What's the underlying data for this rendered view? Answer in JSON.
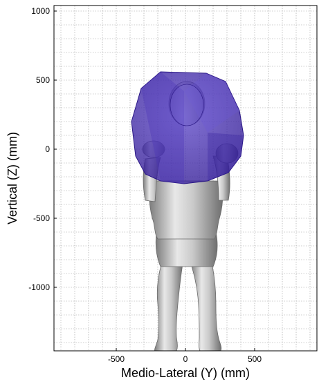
{
  "chart_data": {
    "type": "scatter",
    "title": "",
    "xlabel": "Medio-Lateral (Y) (mm)",
    "ylabel": "Vertical (Z) (mm)",
    "xlim": [
      -950,
      950
    ],
    "ylim": [
      -1460,
      1040
    ],
    "xticks": [
      -500,
      0,
      500
    ],
    "xtick_labels": [
      "-500",
      "0",
      "500"
    ],
    "yticks": [
      1000,
      500,
      0,
      -500,
      -1000
    ],
    "ytick_labels": [
      "1000",
      "500",
      "0",
      "-500",
      "-1000"
    ],
    "minor_grid_step": 100,
    "grid": true,
    "legend": "none",
    "body_model": {
      "name": "human body scan (frontal view)",
      "color": "#c8c8c8",
      "head_center": [
        0,
        450
      ],
      "shoulder_height": 300,
      "shoulder_width": 520,
      "waist_height": -500,
      "foot_height": -1450
    },
    "reach_envelope": {
      "name": "reach envelope volume",
      "color": "#3a1fa8",
      "y_range": [
        -390,
        390
      ],
      "z_range": [
        -200,
        570
      ]
    }
  }
}
